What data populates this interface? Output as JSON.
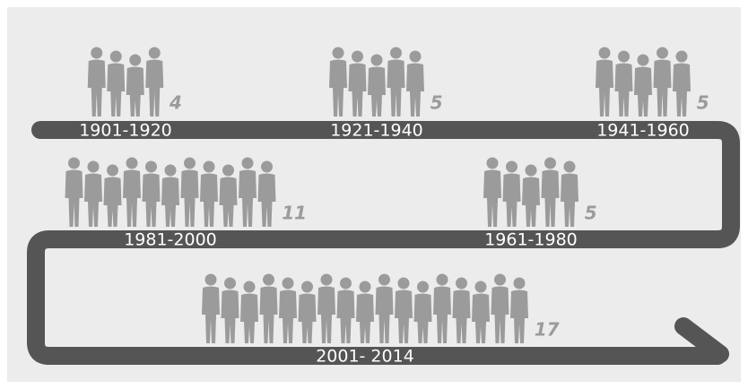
{
  "chart_data": {
    "type": "pictograph",
    "categories": [
      "1901-1920",
      "1921-1940",
      "1941-1960",
      "1981-2000",
      "1961-1980",
      "2001- 2014"
    ],
    "values": [
      4,
      5,
      5,
      11,
      5,
      17
    ],
    "color": "#9b9b9b"
  }
}
